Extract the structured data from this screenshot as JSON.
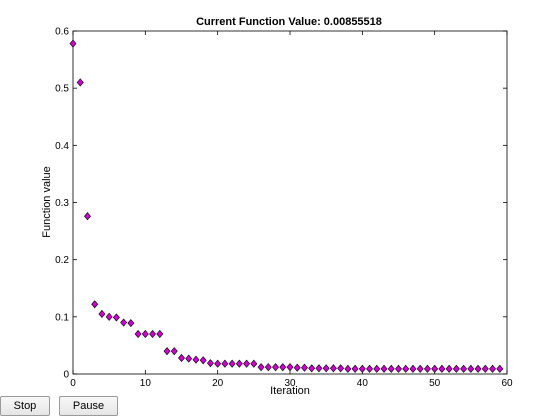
{
  "figure": {
    "background": "#ffffff"
  },
  "chart_data": {
    "type": "scatter",
    "title": "Current Function Value: 0.00855518",
    "xlabel": "Iteration",
    "ylabel": "Function value",
    "xlim": [
      0,
      60
    ],
    "ylim": [
      0,
      0.6
    ],
    "xticks": [
      0,
      10,
      20,
      30,
      40,
      50,
      60
    ],
    "yticks": [
      0,
      0.1,
      0.2,
      0.3,
      0.4,
      0.5,
      0.6
    ],
    "xtick_labels": [
      "0",
      "10",
      "20",
      "30",
      "40",
      "50",
      "60"
    ],
    "ytick_labels": [
      "0",
      "0.1",
      "0.2",
      "0.3",
      "0.4",
      "0.5",
      "0.6"
    ],
    "grid": false,
    "marker": "diamond",
    "marker_color": "#cc00cc",
    "marker_edge_color": "#000000",
    "x": [
      0,
      1,
      2,
      3,
      4,
      5,
      6,
      7,
      8,
      9,
      10,
      11,
      12,
      13,
      14,
      15,
      16,
      17,
      18,
      19,
      20,
      21,
      22,
      23,
      24,
      25,
      26,
      27,
      28,
      29,
      30,
      31,
      32,
      33,
      34,
      35,
      36,
      37,
      38,
      39,
      40,
      41,
      42,
      43,
      44,
      45,
      46,
      47,
      48,
      49,
      50,
      51,
      52,
      53,
      54,
      55,
      56,
      57,
      58,
      59
    ],
    "y": [
      0.578,
      0.51,
      0.276,
      0.122,
      0.105,
      0.1,
      0.099,
      0.09,
      0.089,
      0.07,
      0.07,
      0.07,
      0.07,
      0.04,
      0.04,
      0.028,
      0.027,
      0.025,
      0.024,
      0.019,
      0.018,
      0.018,
      0.018,
      0.018,
      0.018,
      0.018,
      0.012,
      0.012,
      0.012,
      0.012,
      0.012,
      0.011,
      0.011,
      0.01,
      0.01,
      0.01,
      0.01,
      0.01,
      0.009,
      0.009,
      0.009,
      0.009,
      0.009,
      0.009,
      0.009,
      0.009,
      0.009,
      0.009,
      0.009,
      0.009,
      0.009,
      0.009,
      0.009,
      0.009,
      0.009,
      0.009,
      0.009,
      0.009,
      0.009,
      0.009
    ]
  },
  "controls": {
    "stop_label": "Stop",
    "pause_label": "Pause"
  }
}
